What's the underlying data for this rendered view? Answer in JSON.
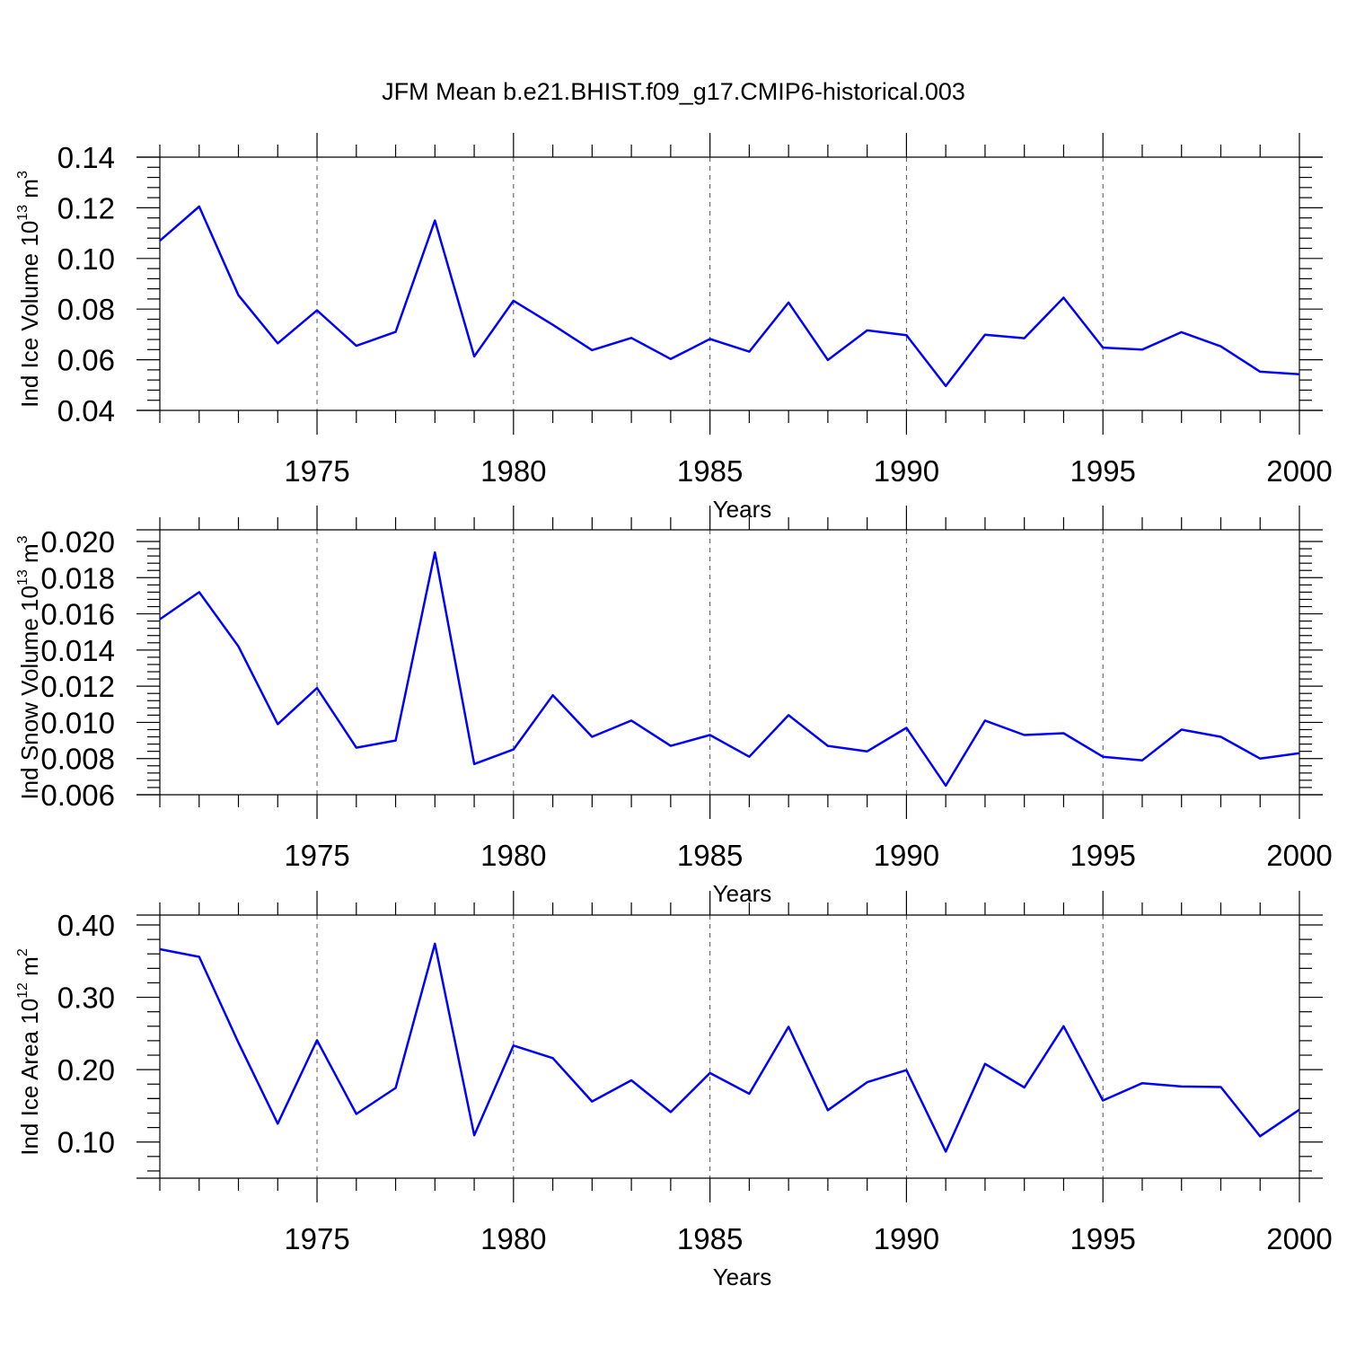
{
  "title": "JFM Mean b.e21.BHIST.f09_g17.CMIP6-historical.003",
  "chart_data": [
    {
      "type": "line",
      "ylabel": {
        "text": "Ind Ice Volume 10",
        "sup": "13",
        "unit": " m",
        "unit_sup": "3"
      },
      "xlabel": "Years",
      "xlim": [
        1971,
        2000
      ],
      "ylim": [
        0.04,
        0.14
      ],
      "yticks": [
        "0.04",
        "0.06",
        "0.08",
        "0.10",
        "0.12",
        "0.14"
      ],
      "xticks": [
        "1975",
        "1980",
        "1985",
        "1990",
        "1995",
        "2000"
      ],
      "grid": "vertical-dashed",
      "series": [
        {
          "name": "Ind Ice Volume",
          "color": "#0000ff",
          "x": [
            1971,
            1972,
            1973,
            1974,
            1975,
            1976,
            1977,
            1978,
            1979,
            1980,
            1981,
            1982,
            1983,
            1984,
            1985,
            1986,
            1987,
            1988,
            1989,
            1990,
            1991,
            1992,
            1993,
            1994,
            1995,
            1996,
            1997,
            1998,
            1999,
            2000
          ],
          "values": [
            0.107,
            0.1205,
            0.0855,
            0.0665,
            0.0795,
            0.0655,
            0.071,
            0.115,
            0.0613,
            0.0833,
            0.0738,
            0.0638,
            0.0686,
            0.0603,
            0.0682,
            0.0632,
            0.0826,
            0.0599,
            0.0716,
            0.0697,
            0.0496,
            0.0699,
            0.0685,
            0.0845,
            0.0648,
            0.064,
            0.0709,
            0.0653,
            0.0553,
            0.0543
          ]
        }
      ]
    },
    {
      "type": "line",
      "ylabel": {
        "text": "Ind Snow Volume 10",
        "sup": "13",
        "unit": " m",
        "unit_sup": "3"
      },
      "xlabel": "Years",
      "xlim": [
        1971,
        2000
      ],
      "ylim": [
        0.006,
        0.02
      ],
      "yticks": [
        "0.006",
        "0.008",
        "0.010",
        "0.012",
        "0.014",
        "0.016",
        "0.018",
        "0.020"
      ],
      "xticks": [
        "1975",
        "1980",
        "1985",
        "1990",
        "1995",
        "2000"
      ],
      "grid": "vertical-dashed",
      "series": [
        {
          "name": "Ind Snow Volume",
          "color": "#0000ff",
          "x": [
            1971,
            1972,
            1973,
            1974,
            1975,
            1976,
            1977,
            1978,
            1979,
            1980,
            1981,
            1982,
            1983,
            1984,
            1985,
            1986,
            1987,
            1988,
            1989,
            1990,
            1991,
            1992,
            1993,
            1994,
            1995,
            1996,
            1997,
            1998,
            1999,
            2000
          ],
          "values": [
            0.0157,
            0.0172,
            0.0142,
            0.0099,
            0.0119,
            0.0086,
            0.009,
            0.0194,
            0.0077,
            0.0085,
            0.0115,
            0.0092,
            0.0101,
            0.0087,
            0.0093,
            0.0081,
            0.0104,
            0.0087,
            0.0084,
            0.0097,
            0.0065,
            0.0101,
            0.0093,
            0.0094,
            0.0081,
            0.0079,
            0.0096,
            0.0092,
            0.008,
            0.0083
          ]
        }
      ]
    },
    {
      "type": "line",
      "ylabel": {
        "text": "Ind Ice Area 10",
        "sup": "12",
        "unit": " m",
        "unit_sup": "2"
      },
      "xlabel": "Years",
      "xlim": [
        1971,
        2000
      ],
      "ylim": [
        0.05,
        0.4
      ],
      "yticks": [
        "0.10",
        "0.20",
        "0.30",
        "0.40"
      ],
      "xticks": [
        "1975",
        "1980",
        "1985",
        "1990",
        "1995",
        "2000"
      ],
      "grid": "vertical-dashed",
      "series": [
        {
          "name": "Ind Ice Area",
          "color": "#0000ff",
          "x": [
            1971,
            1972,
            1973,
            1974,
            1975,
            1976,
            1977,
            1978,
            1979,
            1980,
            1981,
            1982,
            1983,
            1984,
            1985,
            1986,
            1987,
            1988,
            1989,
            1990,
            1991,
            1992,
            1993,
            1994,
            1995,
            1996,
            1997,
            1998,
            1999,
            2000
          ],
          "values": [
            0.3665,
            0.356,
            0.2373,
            0.1253,
            0.2407,
            0.1387,
            0.1747,
            0.374,
            0.1093,
            0.2333,
            0.216,
            0.156,
            0.1853,
            0.1413,
            0.1953,
            0.1667,
            0.2593,
            0.144,
            0.1827,
            0.1993,
            0.0867,
            0.208,
            0.1753,
            0.26,
            0.1573,
            0.1813,
            0.1767,
            0.176,
            0.108,
            0.1447
          ]
        }
      ]
    }
  ]
}
